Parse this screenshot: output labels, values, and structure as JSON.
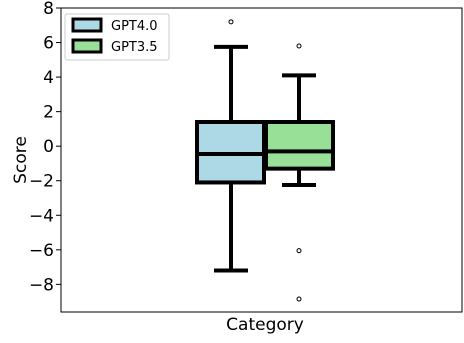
{
  "chart_data": {
    "type": "box",
    "title": "",
    "xlabel": "Category",
    "ylabel": "Score",
    "ylim": [
      -9.6,
      8
    ],
    "yticks": [
      -8,
      -6,
      -4,
      -2,
      0,
      2,
      4,
      6,
      8
    ],
    "ytick_labels": [
      "−8",
      "−6",
      "−4",
      "−2",
      "0",
      "2",
      "4",
      "6",
      "8"
    ],
    "grid": false,
    "legend_position": "top-left",
    "series": [
      {
        "name": "GPT4.0",
        "color": "#add8e6",
        "whisker_low": -7.2,
        "q1": -2.1,
        "median": -0.45,
        "q3": 1.4,
        "whisker_high": 5.75,
        "outliers": [
          7.2
        ]
      },
      {
        "name": "GPT3.5",
        "color": "#98e098",
        "whisker_low": -2.25,
        "q1": -1.3,
        "median": -0.3,
        "q3": 1.4,
        "whisker_high": 4.1,
        "outliers": [
          5.8,
          -6.05,
          -8.85
        ]
      }
    ]
  }
}
